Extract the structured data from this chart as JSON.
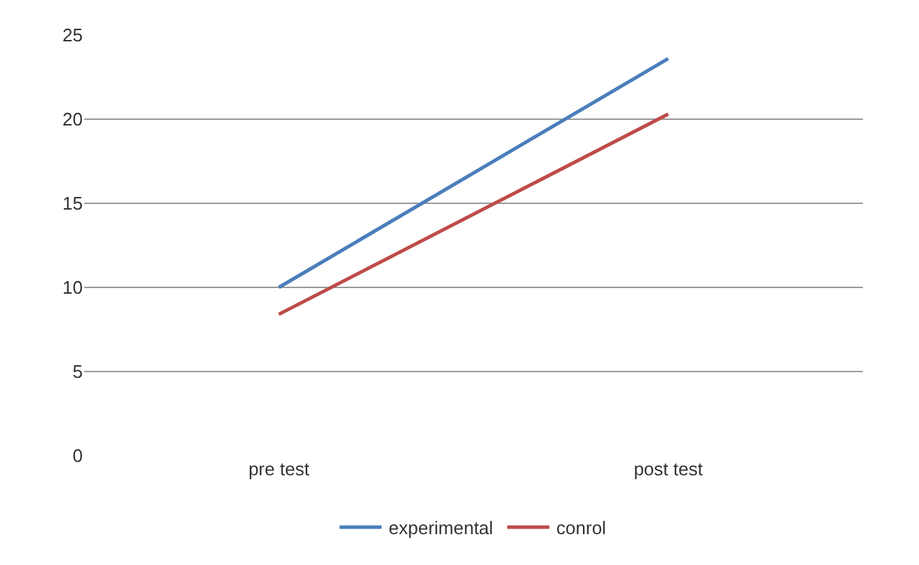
{
  "chart_data": {
    "type": "line",
    "categories": [
      "pre test",
      "post test"
    ],
    "series": [
      {
        "name": "experimental",
        "color": "#4a7ebb",
        "values": [
          10,
          23.6
        ]
      },
      {
        "name": "conrol",
        "color": "#be4b48",
        "values": [
          8.4,
          20.3
        ]
      }
    ],
    "ylim": [
      0,
      25
    ],
    "yticks": [
      0,
      5,
      10,
      15,
      20,
      25
    ],
    "grid": "y",
    "legend": "bottom",
    "marker": "none",
    "line_style": "solid"
  }
}
